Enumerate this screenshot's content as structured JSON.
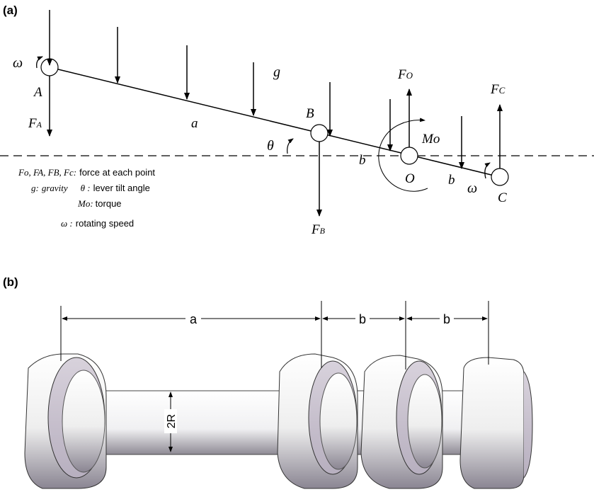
{
  "panel_a": {
    "label": "(a)",
    "points": {
      "A": "A",
      "B": "B",
      "O": "O",
      "C": "C"
    },
    "forces": {
      "FA": "F",
      "FA_sub": "A",
      "FB": "F",
      "FB_sub": "B",
      "FO": "F",
      "FO_sub": "O",
      "FC": "F",
      "FC_sub": "C"
    },
    "symbols": {
      "omega_left": "ω",
      "omega_right": "ω",
      "g": "g",
      "a": "a",
      "b1": "b",
      "b2": "b",
      "theta": "θ",
      "Mo": "Mo"
    },
    "legend": {
      "line1_symbols": "Fo, FA, FB, Fc:",
      "line1_text": "force at each point",
      "line2_g": "g:",
      "line2_gravity": "gravity",
      "line2_theta": "θ :",
      "line2_text": "lever tilt angle",
      "line3_symbol": "Mo:",
      "line3_text": "torque",
      "line4_symbol": "ω :",
      "line4_text": "rotating speed"
    }
  },
  "panel_b": {
    "label": "(b)",
    "dims": {
      "a": "a",
      "b1": "b",
      "b2": "b",
      "radius": "2R"
    }
  }
}
